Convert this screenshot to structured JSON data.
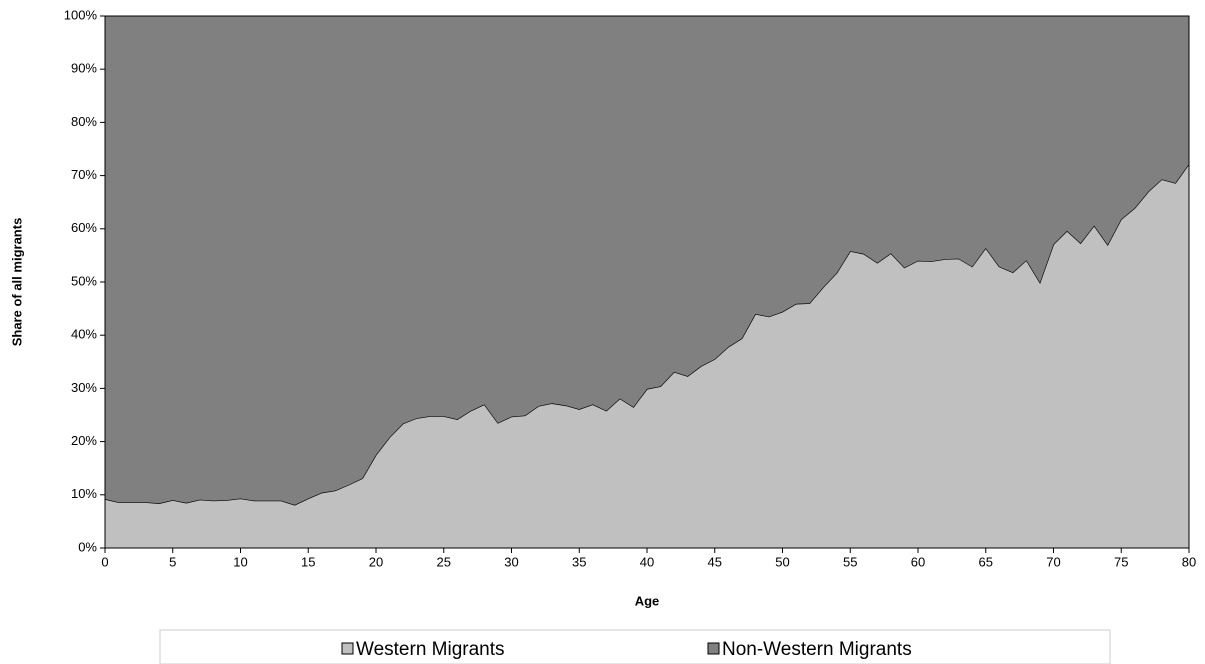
{
  "chart_data": {
    "type": "stacked-area",
    "x_label": "Age",
    "y_label": "Share of all migrants",
    "x": [
      0,
      1,
      2,
      3,
      4,
      5,
      6,
      7,
      8,
      9,
      10,
      11,
      12,
      13,
      14,
      15,
      16,
      17,
      18,
      19,
      20,
      21,
      22,
      23,
      24,
      25,
      26,
      27,
      28,
      29,
      30,
      31,
      32,
      33,
      34,
      35,
      36,
      37,
      38,
      39,
      40,
      41,
      42,
      43,
      44,
      45,
      46,
      47,
      48,
      49,
      50,
      51,
      52,
      53,
      54,
      55,
      56,
      57,
      58,
      59,
      60,
      61,
      62,
      63,
      64,
      65,
      66,
      67,
      68,
      69,
      70,
      71,
      72,
      73,
      74,
      75,
      76,
      77,
      78,
      79,
      80
    ],
    "series": [
      {
        "name": "Western Migrants",
        "color": "#c0c0c0",
        "values": [
          9.2,
          8.6,
          8.6,
          8.6,
          8.4,
          9.0,
          8.5,
          9.1,
          8.9,
          9.0,
          9.3,
          8.9,
          8.9,
          8.9,
          8.1,
          9.3,
          10.4,
          10.8,
          11.9,
          13.1,
          17.5,
          20.8,
          23.4,
          24.4,
          24.8,
          24.8,
          24.2,
          25.8,
          27.0,
          23.5,
          24.7,
          24.9,
          26.7,
          27.2,
          26.8,
          26.1,
          27.0,
          25.8,
          28.1,
          26.5,
          29.9,
          30.4,
          33.1,
          32.3,
          34.2,
          35.5,
          37.8,
          39.4,
          44.0,
          43.5,
          44.4,
          45.9,
          46.0,
          49.0,
          51.7,
          55.8,
          55.3,
          53.6,
          55.4,
          52.7,
          54.0,
          53.9,
          54.3,
          54.4,
          52.9,
          56.4,
          52.9,
          51.8,
          54.1,
          49.9,
          57.1,
          59.6,
          57.3,
          60.6,
          57.0,
          61.8,
          63.9,
          67.0,
          69.3,
          68.6,
          72.2
        ]
      },
      {
        "name": "Non-Western Migrants",
        "color": "#808080",
        "values": [
          90.8,
          91.4,
          91.4,
          91.4,
          91.6,
          91.0,
          91.5,
          90.9,
          91.1,
          91.0,
          90.7,
          91.1,
          91.1,
          91.1,
          91.9,
          90.7,
          89.6,
          89.2,
          88.1,
          86.9,
          82.5,
          79.2,
          76.6,
          75.6,
          75.2,
          75.2,
          75.8,
          74.2,
          73.0,
          76.5,
          75.3,
          75.1,
          73.3,
          72.8,
          73.2,
          73.9,
          73.0,
          74.2,
          71.9,
          73.5,
          70.1,
          69.6,
          66.9,
          67.7,
          65.8,
          64.5,
          62.2,
          60.6,
          56.0,
          56.5,
          55.6,
          54.1,
          54.0,
          51.0,
          48.3,
          44.2,
          44.7,
          46.4,
          44.6,
          47.3,
          46.0,
          46.1,
          45.7,
          45.6,
          47.1,
          43.6,
          47.1,
          48.2,
          45.9,
          50.1,
          42.9,
          40.4,
          42.7,
          39.4,
          43.0,
          38.2,
          36.1,
          33.0,
          30.7,
          31.4,
          27.8
        ]
      }
    ],
    "xlim": [
      0,
      80
    ],
    "xticks": [
      0,
      5,
      10,
      15,
      20,
      25,
      30,
      35,
      40,
      45,
      50,
      55,
      60,
      65,
      70,
      75,
      80
    ],
    "ylim": [
      0,
      100
    ],
    "yticks": [
      {
        "value": 0,
        "label": "0%"
      },
      {
        "value": 10,
        "label": "10%"
      },
      {
        "value": 20,
        "label": "20%"
      },
      {
        "value": 30,
        "label": "30%"
      },
      {
        "value": 40,
        "label": "40%"
      },
      {
        "value": 50,
        "label": "50%"
      },
      {
        "value": 60,
        "label": "60%"
      },
      {
        "value": 70,
        "label": "70%"
      },
      {
        "value": 80,
        "label": "80%"
      },
      {
        "value": 90,
        "label": "90%"
      },
      {
        "value": 100,
        "label": "100%"
      }
    ],
    "legend": "bottom"
  }
}
